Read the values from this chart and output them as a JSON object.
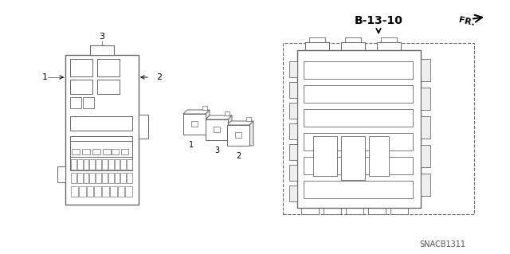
{
  "bg_color": "#ffffff",
  "line_color": "#666666",
  "title_label": "B-13-10",
  "part_number": "SNACB1311",
  "fr_label": "FR.",
  "label1": "1",
  "label2": "2",
  "label3": "3",
  "lw_main": 0.8,
  "lw_thin": 0.5,
  "lw_dashed": 0.7
}
